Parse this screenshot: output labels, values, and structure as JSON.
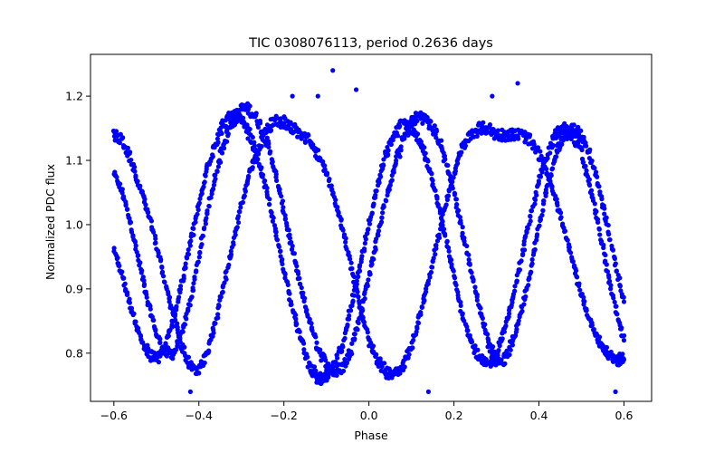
{
  "chart_data": {
    "type": "scatter",
    "title": "TIC 0308076113, period 0.2636 days",
    "xlabel": "Phase",
    "ylabel": "Normalized PDC flux",
    "xlim": [
      -0.655,
      0.665
    ],
    "ylim": [
      0.725,
      1.265
    ],
    "xticks": [
      -0.6,
      -0.4,
      -0.2,
      0.0,
      0.2,
      0.4,
      0.6
    ],
    "xtick_labels": [
      "−0.6",
      "−0.4",
      "−0.2",
      "0.0",
      "0.2",
      "0.4",
      "0.6"
    ],
    "yticks": [
      0.8,
      0.9,
      1.0,
      1.1,
      1.2
    ],
    "ytick_labels": [
      "0.8",
      "0.9",
      "1.0",
      "1.1",
      "1.2"
    ],
    "grid": false,
    "marker_color": "#0000ff",
    "series": [
      {
        "x": [
          -0.6,
          -0.58,
          -0.56,
          -0.54,
          -0.52,
          -0.5,
          -0.48,
          -0.46,
          -0.44,
          -0.42,
          -0.4,
          -0.38,
          -0.36,
          -0.34,
          -0.32,
          -0.3,
          -0.28,
          -0.26,
          -0.24,
          -0.22,
          -0.2,
          -0.18,
          -0.16,
          -0.14,
          -0.12,
          -0.1,
          -0.08,
          -0.06,
          -0.04,
          -0.02,
          0.0,
          0.02,
          0.04,
          0.06,
          0.08,
          0.1,
          0.12,
          0.14,
          0.16,
          0.18,
          0.2,
          0.22,
          0.24,
          0.26,
          0.28,
          0.3,
          0.32,
          0.34,
          0.36,
          0.38,
          0.4,
          0.42,
          0.44,
          0.46,
          0.48,
          0.5,
          0.52,
          0.54,
          0.56,
          0.58,
          0.6
        ],
        "y": [
          1.08,
          1.05,
          1.0,
          0.94,
          0.88,
          0.83,
          0.8,
          0.8,
          0.83,
          0.88,
          0.95,
          1.02,
          1.08,
          1.13,
          1.16,
          1.18,
          1.18,
          1.16,
          1.13,
          1.08,
          1.02,
          0.96,
          0.9,
          0.85,
          0.81,
          0.78,
          0.77,
          0.78,
          0.81,
          0.86,
          0.92,
          0.98,
          1.04,
          1.09,
          1.13,
          1.16,
          1.17,
          1.16,
          1.14,
          1.1,
          1.05,
          0.99,
          0.93,
          0.87,
          0.82,
          0.79,
          0.79,
          0.82,
          0.87,
          0.93,
          1.0,
          1.06,
          1.11,
          1.14,
          1.15,
          1.14,
          1.11,
          1.06,
          1.0,
          0.94,
          0.88
        ]
      },
      {
        "x": [
          -0.6,
          -0.58,
          -0.56,
          -0.54,
          -0.52,
          -0.5,
          -0.48,
          -0.46,
          -0.44,
          -0.42,
          -0.4,
          -0.38,
          -0.36,
          -0.34,
          -0.32,
          -0.3,
          -0.28,
          -0.26,
          -0.24,
          -0.22,
          -0.2,
          -0.18,
          -0.16,
          -0.14,
          -0.12,
          -0.1,
          -0.08,
          -0.06,
          -0.04,
          -0.02,
          0.0,
          0.02,
          0.04,
          0.06,
          0.08,
          0.1,
          0.12,
          0.14,
          0.16,
          0.18,
          0.2,
          0.22,
          0.24,
          0.26,
          0.28,
          0.3,
          0.32,
          0.34,
          0.36,
          0.38,
          0.4,
          0.42,
          0.44,
          0.46,
          0.48,
          0.5,
          0.52,
          0.54,
          0.56,
          0.58,
          0.6
        ],
        "y": [
          0.96,
          0.92,
          0.87,
          0.83,
          0.8,
          0.79,
          0.81,
          0.85,
          0.91,
          0.97,
          1.03,
          1.09,
          1.13,
          1.16,
          1.17,
          1.16,
          1.14,
          1.1,
          1.05,
          0.99,
          0.93,
          0.87,
          0.82,
          0.78,
          0.76,
          0.76,
          0.78,
          0.82,
          0.88,
          0.94,
          1.0,
          1.06,
          1.11,
          1.14,
          1.16,
          1.15,
          1.13,
          1.09,
          1.04,
          0.98,
          0.92,
          0.86,
          0.82,
          0.79,
          0.78,
          0.8,
          0.84,
          0.89,
          0.95,
          1.01,
          1.07,
          1.11,
          1.14,
          1.15,
          1.14,
          1.11,
          1.06,
          1.0,
          0.93,
          0.87,
          0.82
        ]
      },
      {
        "x": [
          -0.6,
          -0.58,
          -0.56,
          -0.54,
          -0.52,
          -0.5,
          -0.48,
          -0.46,
          -0.44,
          -0.42,
          -0.4,
          -0.38,
          -0.36,
          -0.34,
          -0.32,
          -0.3,
          -0.28,
          -0.26,
          -0.24,
          -0.22,
          -0.2,
          -0.18,
          -0.16,
          -0.14,
          -0.12,
          -0.1,
          -0.08,
          -0.06,
          -0.04,
          -0.02,
          0.0,
          0.02,
          0.04,
          0.06,
          0.08,
          0.1,
          0.12,
          0.14,
          0.16,
          0.18,
          0.2,
          0.22,
          0.24,
          0.26,
          0.28,
          0.3,
          0.32,
          0.34,
          0.36,
          0.38,
          0.4,
          0.42,
          0.44,
          0.46,
          0.48,
          0.5,
          0.52,
          0.54,
          0.56,
          0.58,
          0.6
        ],
        "y": [
          1.14,
          1.13,
          1.1,
          1.06,
          1.02,
          0.97,
          0.91,
          0.86,
          0.81,
          0.78,
          0.77,
          0.8,
          0.85,
          0.91,
          0.97,
          1.03,
          1.08,
          1.12,
          1.15,
          1.16,
          1.16,
          1.15,
          1.14,
          1.13,
          1.11,
          1.08,
          1.04,
          0.99,
          0.93,
          0.87,
          0.82,
          0.79,
          0.77,
          0.77,
          0.78,
          0.81,
          0.86,
          0.91,
          0.97,
          1.03,
          1.08,
          1.12,
          1.14,
          1.15,
          1.15,
          1.14,
          1.14,
          1.14,
          1.14,
          1.13,
          1.11,
          1.08,
          1.04,
          0.99,
          0.94,
          0.89,
          0.85,
          0.82,
          0.8,
          0.79,
          0.79
        ]
      }
    ],
    "outliers": {
      "x": [
        -0.085,
        -0.03,
        -0.12,
        0.35,
        0.29,
        -0.18,
        0.14,
        -0.42,
        0.58
      ],
      "y": [
        1.24,
        1.21,
        1.2,
        1.22,
        1.2,
        1.2,
        0.74,
        0.74,
        0.74
      ]
    }
  }
}
